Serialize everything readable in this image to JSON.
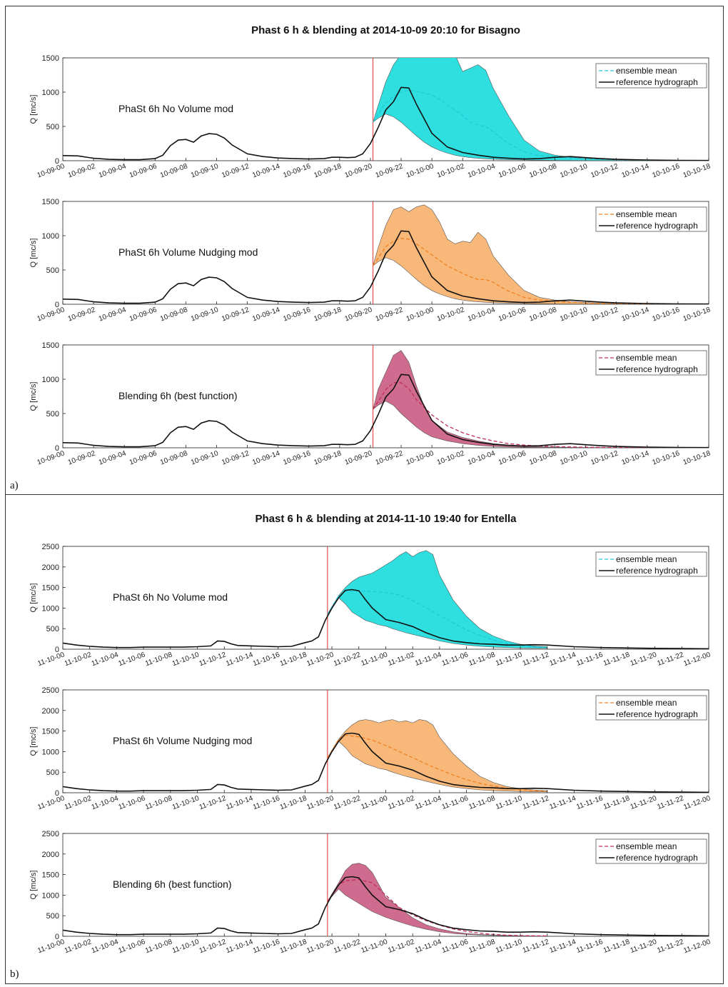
{
  "figures": [
    {
      "panel_label": "a)",
      "title": "Phast 6 h & blending at 2014-10-09 20:10 for Bisagno",
      "x_ticks": [
        "10-09-00",
        "10-09-02",
        "10-09-04",
        "10-09-06",
        "10-09-08",
        "10-09-10",
        "10-09-12",
        "10-09-14",
        "10-09-16",
        "10-09-18",
        "10-09-20",
        "10-09-22",
        "10-10-00",
        "10-10-02",
        "10-10-04",
        "10-10-06",
        "10-10-08",
        "10-10-10",
        "10-10-12",
        "10-10-14",
        "10-10-16",
        "10-10-18"
      ],
      "ylim": [
        0,
        1500
      ],
      "y_ticks": [
        0,
        500,
        1000,
        1500
      ],
      "ylabel": "Q [mc/s]",
      "forecast_time_hours": 20.17,
      "x_max_hours": 42,
      "legend": [
        "ensemble mean",
        "reference hydrograph"
      ],
      "reference_hydrograph": {
        "hours": [
          0,
          1,
          2,
          3,
          4,
          5,
          6,
          6.5,
          7,
          7.5,
          8,
          8.5,
          9,
          9.5,
          10,
          10.5,
          11,
          12,
          13,
          14,
          15,
          16,
          17,
          17.5,
          18,
          18.5,
          19,
          19.5,
          20,
          20.5,
          21,
          21.5,
          22,
          22.5,
          23,
          24,
          25,
          26,
          27,
          28,
          29,
          30,
          31,
          32,
          33,
          34,
          35,
          36,
          38,
          40,
          42
        ],
        "values": [
          75,
          70,
          35,
          20,
          15,
          15,
          30,
          80,
          220,
          300,
          310,
          270,
          360,
          395,
          385,
          330,
          230,
          100,
          60,
          40,
          30,
          25,
          30,
          50,
          50,
          45,
          50,
          100,
          250,
          480,
          740,
          860,
          1070,
          1060,
          820,
          400,
          200,
          120,
          80,
          50,
          35,
          25,
          30,
          50,
          60,
          45,
          30,
          20,
          10,
          5,
          3
        ]
      },
      "subplots": [
        {
          "annotation": "PhaSt 6h No Volume mod",
          "color": "#2fdfe0",
          "band": {
            "hours": [
              20.17,
              20.5,
              21,
              21.5,
              22,
              22.5,
              23,
              23.5,
              24,
              24.5,
              25,
              25.5,
              26,
              26.5,
              27,
              27.5,
              28,
              29,
              30,
              31,
              32,
              33,
              34,
              35,
              36,
              38,
              40
            ],
            "upper": [
              560,
              800,
              1150,
              1400,
              1550,
              1620,
              1650,
              1620,
              1600,
              1600,
              1620,
              1550,
              1300,
              1350,
              1400,
              1320,
              1050,
              650,
              300,
              140,
              80,
              50,
              30,
              20,
              10,
              5,
              3
            ],
            "lower": [
              560,
              620,
              680,
              640,
              560,
              460,
              360,
              270,
              200,
              150,
              110,
              80,
              60,
              45,
              35,
              28,
              22,
              15,
              10,
              7,
              5,
              3,
              2,
              2,
              1,
              1,
              1
            ]
          },
          "ensemble_mean": {
            "hours": [
              20.17,
              21,
              21.5,
              22,
              22.5,
              23,
              24,
              25,
              26,
              26.5,
              27,
              27.5,
              28,
              28.5,
              29,
              30,
              31,
              32,
              33,
              34,
              36,
              38,
              40
            ],
            "values": [
              560,
              840,
              940,
              1000,
              1030,
              1010,
              960,
              820,
              660,
              560,
              520,
              500,
              420,
              330,
              250,
              130,
              75,
              55,
              40,
              30,
              15,
              8,
              5
            ]
          }
        },
        {
          "annotation": "PhaSt 6h Volume Nudging mod",
          "color": "#f8b87a",
          "band": {
            "hours": [
              20.17,
              20.5,
              21,
              21.5,
              22,
              22.5,
              23,
              23.5,
              24,
              24.5,
              25,
              25.5,
              26,
              26.5,
              27,
              27.5,
              28,
              29,
              30,
              31,
              32,
              33,
              34,
              35,
              36,
              38,
              40
            ],
            "upper": [
              560,
              820,
              1150,
              1380,
              1420,
              1350,
              1420,
              1450,
              1380,
              1200,
              950,
              880,
              920,
              900,
              1050,
              950,
              700,
              420,
              200,
              100,
              60,
              35,
              25,
              15,
              10,
              5,
              3
            ],
            "lower": [
              560,
              620,
              680,
              640,
              560,
              460,
              360,
              270,
              200,
              150,
              110,
              80,
              60,
              45,
              35,
              28,
              22,
              15,
              10,
              7,
              5,
              3,
              2,
              2,
              1,
              1,
              1
            ]
          },
          "ensemble_mean": {
            "hours": [
              20.17,
              21,
              21.5,
              22,
              22.5,
              23,
              24,
              25,
              26,
              26.5,
              27,
              27.5,
              28,
              28.5,
              29,
              30,
              31,
              32,
              33,
              34,
              36,
              38,
              40
            ],
            "values": [
              560,
              840,
              920,
              960,
              950,
              880,
              720,
              560,
              450,
              400,
              360,
              360,
              320,
              250,
              190,
              100,
              60,
              40,
              30,
              20,
              10,
              5,
              3
            ]
          }
        },
        {
          "annotation": "Blending 6h (best function)",
          "color": "#cf6b8f",
          "band": {
            "hours": [
              20.17,
              20.5,
              21,
              21.5,
              22,
              22.5,
              23,
              23.5,
              24,
              25,
              26,
              27,
              28,
              29,
              30,
              31,
              32,
              33,
              34,
              36,
              38,
              40
            ],
            "upper": [
              560,
              850,
              1100,
              1350,
              1420,
              1250,
              900,
              600,
              400,
              230,
              150,
              100,
              60,
              40,
              25,
              15,
              10,
              6,
              4,
              2,
              1,
              1
            ],
            "lower": [
              560,
              620,
              680,
              620,
              500,
              400,
              300,
              220,
              160,
              100,
              60,
              35,
              20,
              12,
              8,
              5,
              3,
              2,
              1,
              1,
              0,
              0
            ]
          },
          "ensemble_mean": {
            "hours": [
              20.17,
              21,
              21.5,
              22,
              22.5,
              23,
              24,
              25,
              26,
              27,
              28,
              29,
              30,
              31,
              32,
              34,
              36,
              38,
              40
            ],
            "values": [
              560,
              850,
              950,
              950,
              860,
              700,
              480,
              320,
              220,
              150,
              100,
              60,
              40,
              25,
              18,
              8,
              4,
              2,
              1
            ]
          }
        }
      ]
    },
    {
      "panel_label": "b)",
      "title": "Phast 6 h & blending at 2014-11-10 19:40 for Entella",
      "x_ticks": [
        "11-10-00",
        "11-10-02",
        "11-10-04",
        "11-10-06",
        "11-10-08",
        "11-10-10",
        "11-10-12",
        "11-10-14",
        "11-10-16",
        "11-10-18",
        "11-10-20",
        "11-10-22",
        "11-11-00",
        "11-11-02",
        "11-11-04",
        "11-11-06",
        "11-11-08",
        "11-11-10",
        "11-11-12",
        "11-11-14",
        "11-11-16",
        "11-11-18",
        "11-11-20",
        "11-11-22",
        "11-12-00"
      ],
      "ylim": [
        0,
        2500
      ],
      "y_ticks": [
        0,
        500,
        1000,
        1500,
        2000,
        2500
      ],
      "ylabel": "Q [mc/s]",
      "forecast_time_hours": 19.67,
      "x_max_hours": 48,
      "legend": [
        "ensemble mean",
        "reference hydrograph"
      ],
      "reference_hydrograph": {
        "hours": [
          0,
          1,
          2,
          3,
          4,
          5,
          6,
          7,
          8,
          9,
          10,
          11,
          11.5,
          12,
          12.5,
          13,
          14,
          15,
          16,
          17,
          18,
          18.5,
          19,
          19.5,
          20,
          20.5,
          21,
          21.5,
          22,
          22.5,
          23,
          24,
          25,
          26,
          27,
          28,
          29,
          30,
          31,
          32,
          33,
          34,
          35,
          36,
          38,
          40,
          42,
          44,
          46,
          48
        ],
        "values": [
          150,
          100,
          70,
          50,
          40,
          40,
          50,
          50,
          50,
          50,
          60,
          80,
          200,
          190,
          130,
          90,
          80,
          70,
          60,
          70,
          160,
          200,
          300,
          700,
          1000,
          1250,
          1430,
          1450,
          1420,
          1200,
          1000,
          720,
          650,
          550,
          400,
          280,
          200,
          160,
          130,
          120,
          100,
          100,
          110,
          100,
          60,
          40,
          30,
          20,
          15,
          10
        ]
      },
      "subplots": [
        {
          "annotation": "PhaSt 6h No Volume mod",
          "color": "#2fdfe0",
          "band": {
            "hours": [
              19.67,
              20.5,
              21,
              21.5,
              22,
              22.5,
              23,
              23.5,
              24,
              24.5,
              25,
              25.5,
              26,
              26.5,
              27,
              27.5,
              28,
              29,
              30,
              31,
              32,
              33,
              34,
              35,
              36
            ],
            "upper": [
              850,
              1300,
              1500,
              1650,
              1750,
              1800,
              1850,
              1950,
              2050,
              2150,
              2280,
              2370,
              2250,
              2350,
              2400,
              2300,
              1800,
              1200,
              800,
              500,
              320,
              200,
              120,
              80,
              60
            ],
            "lower": [
              850,
              1250,
              1100,
              900,
              800,
              700,
              650,
              590,
              560,
              500,
              450,
              400,
              360,
              320,
              280,
              240,
              200,
              140,
              100,
              70,
              50,
              40,
              30,
              25,
              20
            ]
          },
          "ensemble_mean": {
            "hours": [
              19.67,
              20.5,
              21,
              22,
              23,
              24,
              25,
              26,
              27,
              28,
              29,
              30,
              31,
              32,
              33,
              34,
              35,
              36
            ],
            "values": [
              850,
              1300,
              1400,
              1420,
              1400,
              1380,
              1320,
              1180,
              1000,
              820,
              640,
              470,
              330,
              220,
              140,
              90,
              60,
              40
            ]
          }
        },
        {
          "annotation": "PhaSt 6h Volume Nudging mod",
          "color": "#f8b87a",
          "band": {
            "hours": [
              19.67,
              20.5,
              21,
              21.5,
              22,
              22.5,
              23,
              23.5,
              24,
              24.5,
              25,
              25.5,
              26,
              26.5,
              27,
              27.5,
              28,
              29,
              30,
              31,
              32,
              33,
              34,
              35,
              36
            ],
            "upper": [
              850,
              1300,
              1500,
              1650,
              1750,
              1780,
              1750,
              1700,
              1750,
              1780,
              1720,
              1750,
              1700,
              1780,
              1750,
              1650,
              1350,
              950,
              650,
              400,
              250,
              150,
              100,
              70,
              50
            ],
            "lower": [
              850,
              1250,
              1100,
              900,
              800,
              700,
              650,
              590,
              560,
              500,
              450,
              400,
              360,
              320,
              280,
              240,
              200,
              140,
              100,
              70,
              50,
              40,
              30,
              25,
              20
            ]
          },
          "ensemble_mean": {
            "hours": [
              19.67,
              20.5,
              21,
              22,
              23,
              24,
              25,
              26,
              27,
              28,
              29,
              30,
              31,
              32,
              33,
              34,
              35,
              36
            ],
            "values": [
              850,
              1300,
              1400,
              1360,
              1280,
              1150,
              1000,
              850,
              700,
              560,
              430,
              320,
              230,
              160,
              110,
              75,
              50,
              35
            ]
          }
        },
        {
          "annotation": "Blending 6h (best function)",
          "color": "#cf6b8f",
          "band": {
            "hours": [
              19.67,
              20.5,
              21,
              21.5,
              22,
              22.5,
              23,
              23.5,
              24,
              25,
              26,
              27,
              28,
              29,
              30,
              31,
              32,
              33,
              34,
              35,
              36
            ],
            "upper": [
              850,
              1300,
              1600,
              1750,
              1780,
              1720,
              1550,
              1250,
              950,
              700,
              450,
              280,
              180,
              110,
              70,
              45,
              30,
              20,
              12,
              8,
              5
            ],
            "lower": [
              850,
              1150,
              1000,
              900,
              800,
              700,
              600,
              530,
              460,
              350,
              250,
              170,
              110,
              70,
              45,
              30,
              20,
              12,
              8,
              5,
              3
            ]
          },
          "ensemble_mean": {
            "hours": [
              19.67,
              20.5,
              21,
              22,
              23,
              24,
              25,
              26,
              27,
              28,
              29,
              30,
              31,
              32,
              33,
              34,
              35,
              36
            ],
            "values": [
              850,
              1250,
              1350,
              1380,
              1300,
              1000,
              700,
              520,
              380,
              270,
              180,
              120,
              75,
              45,
              28,
              18,
              12,
              8
            ]
          }
        }
      ]
    }
  ]
}
